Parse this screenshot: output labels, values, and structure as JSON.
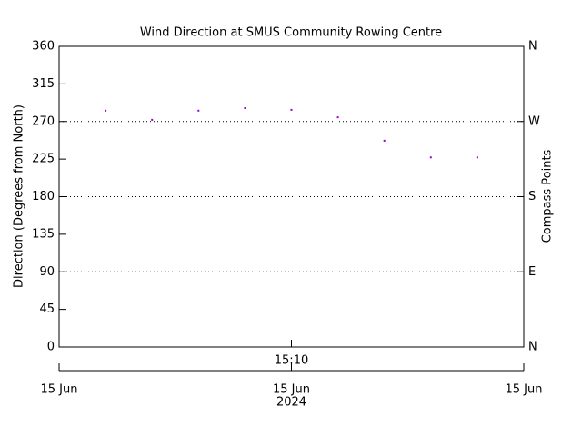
{
  "chart_data": {
    "type": "scatter",
    "title": "Wind Direction at SMUS Community Rowing Centre",
    "y_label": "Direction (Degrees from North)",
    "y2_label": "Compass Points",
    "categories": [
      null,
      null,
      null,
      null,
      "15:10",
      null,
      null,
      null,
      null
    ],
    "date_axis": {
      "labels": [
        "15 Jun",
        "15 Jun",
        "15 Jun"
      ],
      "year": "2024"
    },
    "series": [
      {
        "name": "Wind Direction",
        "color": "#9900cc",
        "values": [
          283,
          272,
          283,
          286,
          284,
          275,
          247,
          227,
          227
        ]
      }
    ],
    "ylim": [
      0,
      360
    ],
    "yticks": [
      0,
      45,
      90,
      135,
      180,
      225,
      270,
      315,
      360
    ],
    "y2lim": [
      0,
      360
    ],
    "y2ticks": [
      {
        "value": 0,
        "label": "N"
      },
      {
        "value": 90,
        "label": "E"
      },
      {
        "value": 180,
        "label": "S"
      },
      {
        "value": 270,
        "label": "W"
      },
      {
        "value": 360,
        "label": "N"
      }
    ],
    "grid": true
  }
}
